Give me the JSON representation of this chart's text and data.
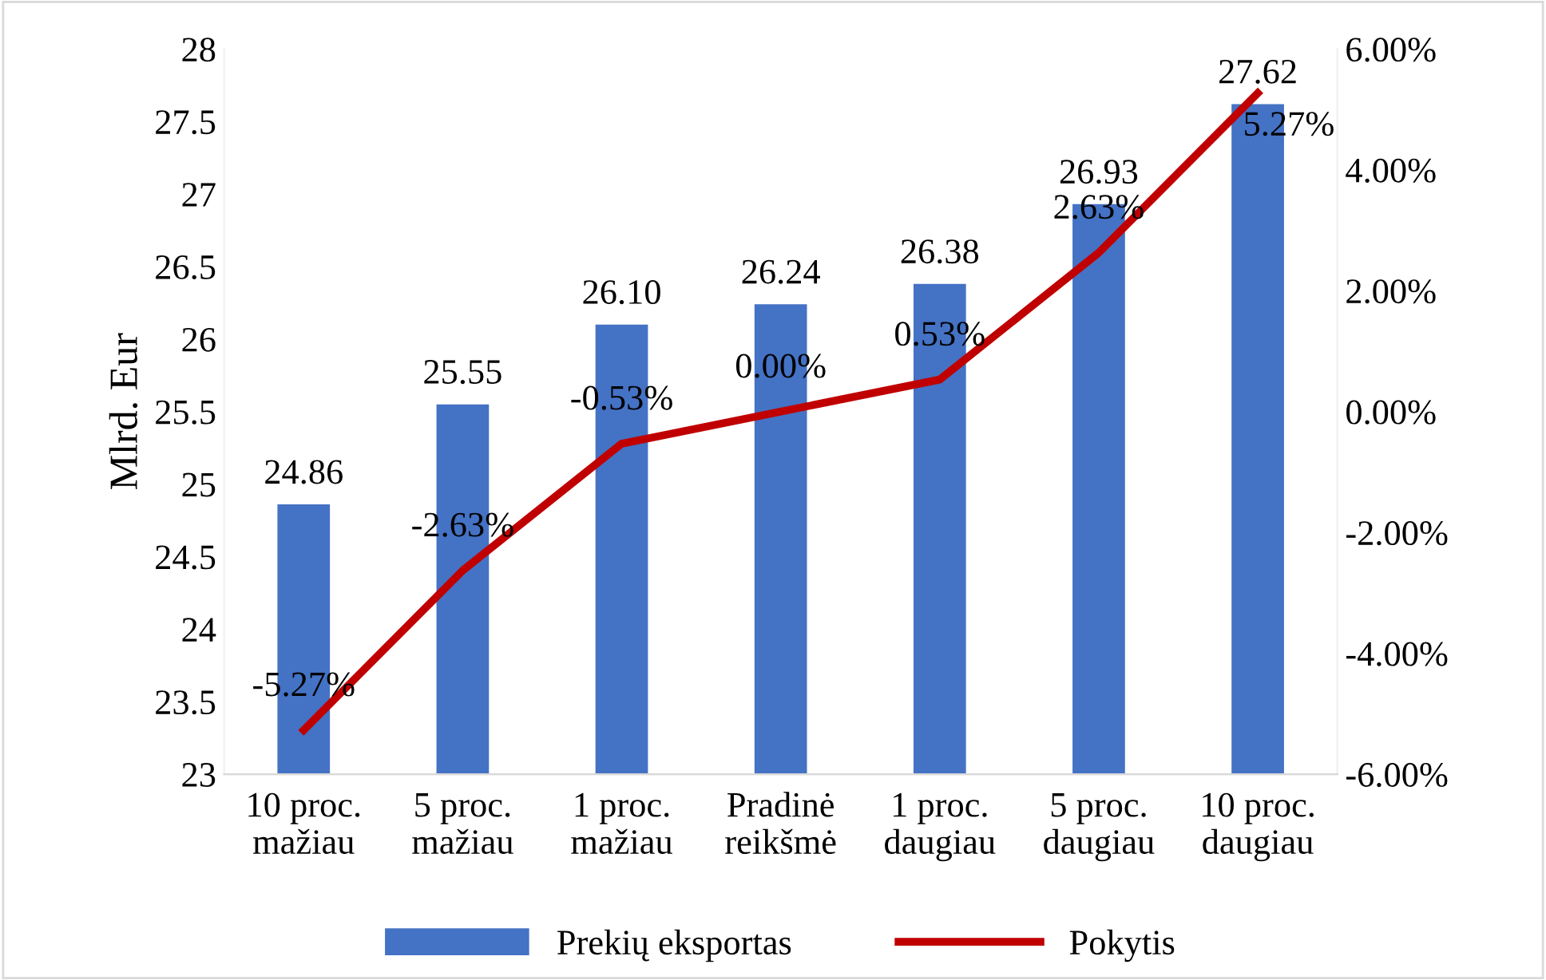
{
  "chart_data": {
    "type": "bar",
    "ylabel": "Mlrd. Eur",
    "categories": [
      "10 proc.\nmažiau",
      "5 proc.\nmažiau",
      "1 proc.\nmažiau",
      "Pradinė\nreikšmė",
      "1 proc.\ndaugiau",
      "5 proc.\ndaugiau",
      "10 proc.\ndaugiau"
    ],
    "series": [
      {
        "name": "Prekių eksportas",
        "color": "#4472c4",
        "values": [
          24.86,
          25.55,
          26.1,
          26.24,
          26.38,
          26.93,
          27.62
        ],
        "value_labels": [
          "24.86",
          "25.55",
          "26.10",
          "26.24",
          "26.38",
          "26.93",
          "27.62"
        ]
      },
      {
        "name": "Pokytis",
        "type": "line",
        "axis": "y2",
        "color": "#c00000",
        "values": [
          -5.27,
          -2.63,
          -0.53,
          0.0,
          0.53,
          2.63,
          5.27
        ],
        "value_labels": [
          "-5.27%",
          "-2.63%",
          "-0.53%",
          "0.00%",
          "0.53%",
          "2.63%",
          "5.27%"
        ]
      }
    ],
    "ylim": [
      23,
      28
    ],
    "yticks": [
      23,
      23.5,
      24,
      24.5,
      25,
      25.5,
      26,
      26.5,
      27,
      27.5,
      28
    ],
    "y2lim": [
      -6,
      6
    ],
    "y2ticks": [
      {
        "value": -6,
        "label": "-6.00%"
      },
      {
        "value": -4,
        "label": "-4.00%"
      },
      {
        "value": -2,
        "label": "-2.00%"
      },
      {
        "value": 0,
        "label": "0.00%"
      },
      {
        "value": 2,
        "label": "2.00%"
      },
      {
        "value": 4,
        "label": "4.00%"
      },
      {
        "value": 6,
        "label": "6.00%"
      }
    ],
    "grid": false,
    "legend": "bottom",
    "marker": "none",
    "line_style": "solid"
  }
}
